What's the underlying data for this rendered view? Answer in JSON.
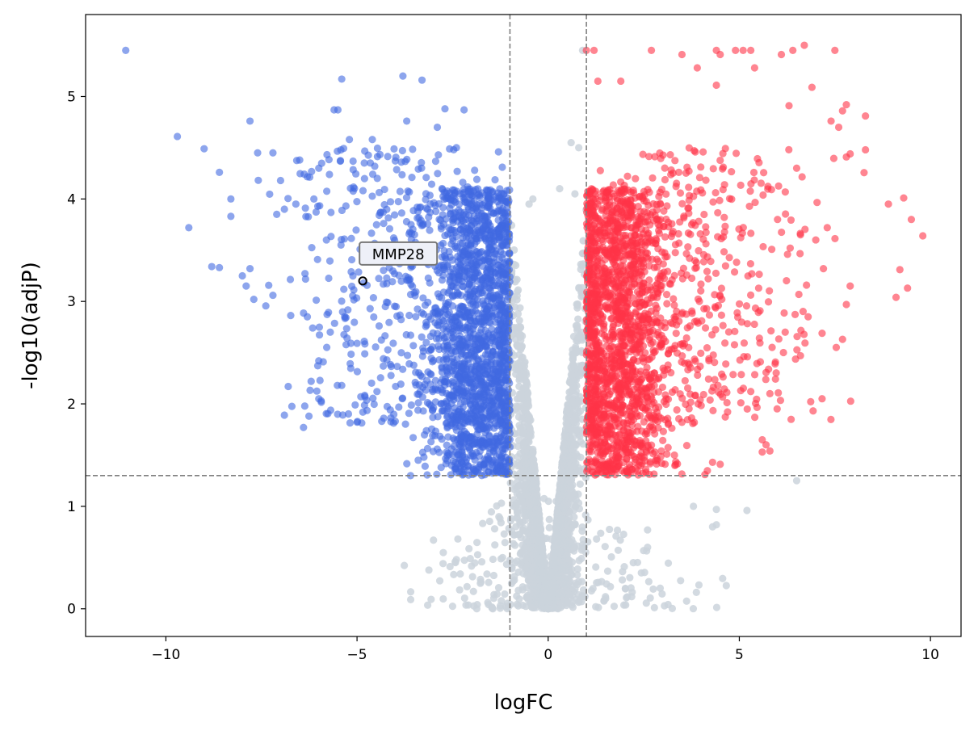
{
  "chart_data": {
    "type": "scatter",
    "title": "",
    "xlabel": "logFC",
    "ylabel": "-log10(adjP)",
    "xlim": [
      -12.1,
      10.8
    ],
    "ylim": [
      -0.27,
      5.8
    ],
    "xticks": [
      -10,
      -5,
      0,
      5,
      10
    ],
    "xtick_labels": [
      "−10",
      "−5",
      "0",
      "5",
      "10"
    ],
    "yticks": [
      0,
      1,
      2,
      3,
      4,
      5
    ],
    "ytick_labels": [
      "0",
      "1",
      "2",
      "3",
      "4",
      "5"
    ],
    "grid": false,
    "thresholds": {
      "logFC": [
        -1,
        1
      ],
      "neg_log10_adjP": 1.3
    },
    "colors": {
      "down": "#4169e1",
      "up": "#ff3347",
      "ns": "#cbd4dc",
      "threshold": "#808080",
      "highlight_edge": "#000000"
    },
    "clusters": [
      {
        "group": "ns",
        "n": 2600,
        "x_mean": 0,
        "x_sd": 0.45,
        "kind": "v"
      },
      {
        "group": "ns",
        "n": 260,
        "x_mean": 0,
        "x_sd": 1.6,
        "y_min": 0,
        "y_max": 1.3,
        "kind": "low"
      },
      {
        "group": "down",
        "n": 1700,
        "x_mean": -1.8,
        "x_sd": 0.7,
        "x_max": -1,
        "y_min": 1.3,
        "y_max": 4.1
      },
      {
        "group": "down",
        "n": 380,
        "x_mean": -4.2,
        "x_sd": 1.4,
        "x_max": -1,
        "y_min": 1.8,
        "y_max": 4.5
      },
      {
        "group": "up",
        "n": 1700,
        "x_mean": 1.8,
        "x_sd": 0.7,
        "x_min": 1,
        "y_min": 1.3,
        "y_max": 4.1
      },
      {
        "group": "up",
        "n": 380,
        "x_mean": 4.2,
        "x_sd": 1.4,
        "x_min": 1,
        "y_min": 1.8,
        "y_max": 4.5
      }
    ],
    "points": {
      "down": [
        [
          -11.05,
          5.45
        ],
        [
          -9.7,
          4.61
        ],
        [
          -9.0,
          4.49
        ],
        [
          -9.4,
          3.72
        ],
        [
          -8.6,
          4.26
        ],
        [
          -8.3,
          4.0
        ],
        [
          -8.3,
          3.83
        ],
        [
          -8.8,
          3.34
        ],
        [
          -8.6,
          3.33
        ],
        [
          -7.8,
          4.76
        ],
        [
          -7.6,
          4.45
        ],
        [
          -7.8,
          3.32
        ],
        [
          -7.9,
          3.15
        ],
        [
          -8.0,
          3.25
        ],
        [
          -7.7,
          3.02
        ],
        [
          -7.2,
          3.06
        ],
        [
          -7.2,
          4.45
        ],
        [
          -7.0,
          4.18
        ],
        [
          -6.9,
          1.89
        ],
        [
          -6.8,
          2.17
        ],
        [
          -6.4,
          1.77
        ],
        [
          -6.0,
          2.05
        ],
        [
          -6.2,
          2.22
        ],
        [
          -5.4,
          2.18
        ],
        [
          -4.9,
          2.07
        ],
        [
          -5.4,
          5.17
        ],
        [
          -5.6,
          4.87
        ],
        [
          -5.5,
          4.87
        ],
        [
          -5.2,
          4.58
        ],
        [
          -4.6,
          4.58
        ],
        [
          -3.8,
          5.2
        ],
        [
          -3.3,
          5.16
        ],
        [
          -2.7,
          4.88
        ],
        [
          -2.2,
          4.87
        ],
        [
          -3.7,
          4.76
        ],
        [
          -2.9,
          4.7
        ],
        [
          -1.3,
          4.46
        ],
        [
          -1.2,
          4.31
        ],
        [
          -2.4,
          4.5
        ],
        [
          -4.3,
          1.86
        ],
        [
          -4.0,
          1.83
        ],
        [
          -3.6,
          1.3
        ],
        [
          -3.4,
          1.45
        ],
        [
          -2.8,
          1.38
        ],
        [
          -6.9,
          3.9
        ],
        [
          -6.6,
          3.95
        ],
        [
          -7.1,
          3.85
        ],
        [
          -6.5,
          4.38
        ],
        [
          -6.0,
          4.3
        ],
        [
          -5.8,
          3.6
        ],
        [
          -6.3,
          2.85
        ],
        [
          -5.7,
          2.7
        ],
        [
          -6.0,
          2.42
        ]
      ],
      "up": [
        [
          1.0,
          5.45
        ],
        [
          1.2,
          5.45
        ],
        [
          2.7,
          5.45
        ],
        [
          3.5,
          5.41
        ],
        [
          4.4,
          5.45
        ],
        [
          4.5,
          5.41
        ],
        [
          4.9,
          5.45
        ],
        [
          5.1,
          5.45
        ],
        [
          5.3,
          5.45
        ],
        [
          6.1,
          5.41
        ],
        [
          6.4,
          5.45
        ],
        [
          6.7,
          5.5
        ],
        [
          7.5,
          5.45
        ],
        [
          1.3,
          5.15
        ],
        [
          1.9,
          5.15
        ],
        [
          3.9,
          5.28
        ],
        [
          5.4,
          5.28
        ],
        [
          4.4,
          5.11
        ],
        [
          6.3,
          4.91
        ],
        [
          6.9,
          5.09
        ],
        [
          7.8,
          4.92
        ],
        [
          7.7,
          4.86
        ],
        [
          8.3,
          4.81
        ],
        [
          7.4,
          4.76
        ],
        [
          7.6,
          4.7
        ],
        [
          7.9,
          4.44
        ],
        [
          8.3,
          4.48
        ],
        [
          7.8,
          4.41
        ],
        [
          8.9,
          3.95
        ],
        [
          9.3,
          4.01
        ],
        [
          9.5,
          3.8
        ],
        [
          9.8,
          3.64
        ],
        [
          9.2,
          3.31
        ],
        [
          9.4,
          3.13
        ],
        [
          9.1,
          3.04
        ],
        [
          7.9,
          3.15
        ],
        [
          7.8,
          2.97
        ],
        [
          7.7,
          2.63
        ],
        [
          6.6,
          2.47
        ],
        [
          5.8,
          2.1
        ],
        [
          5.6,
          1.65
        ],
        [
          5.7,
          1.6
        ],
        [
          5.8,
          1.54
        ],
        [
          5.6,
          1.53
        ],
        [
          4.3,
          1.43
        ],
        [
          4.5,
          1.41
        ],
        [
          4.1,
          1.31
        ],
        [
          7.3,
          3.72
        ],
        [
          6.8,
          2.85
        ],
        [
          7.0,
          3.6
        ],
        [
          6.6,
          3.65
        ],
        [
          7.2,
          3.32
        ],
        [
          6.5,
          4.3
        ],
        [
          6.0,
          3.8
        ],
        [
          6.2,
          2.7
        ]
      ],
      "ns": [
        [
          0.9,
          5.45
        ],
        [
          0.8,
          4.5
        ],
        [
          0.6,
          4.55
        ],
        [
          6.5,
          1.25
        ],
        [
          5.2,
          0.96
        ],
        [
          4.3,
          0.8
        ],
        [
          4.4,
          0.82
        ],
        [
          3.8,
          1.0
        ],
        [
          4.4,
          0.97
        ],
        [
          -2.3,
          0.34
        ],
        [
          -2.4,
          0.48
        ],
        [
          -3.0,
          0.67
        ],
        [
          2.6,
          0.6
        ],
        [
          2.6,
          0.77
        ],
        [
          0.3,
          4.1
        ],
        [
          0.7,
          4.05
        ],
        [
          -0.4,
          4.0
        ],
        [
          -0.5,
          3.95
        ]
      ]
    },
    "annotations": [
      {
        "label": "MMP28",
        "x": -4.85,
        "y": 3.2
      }
    ]
  }
}
